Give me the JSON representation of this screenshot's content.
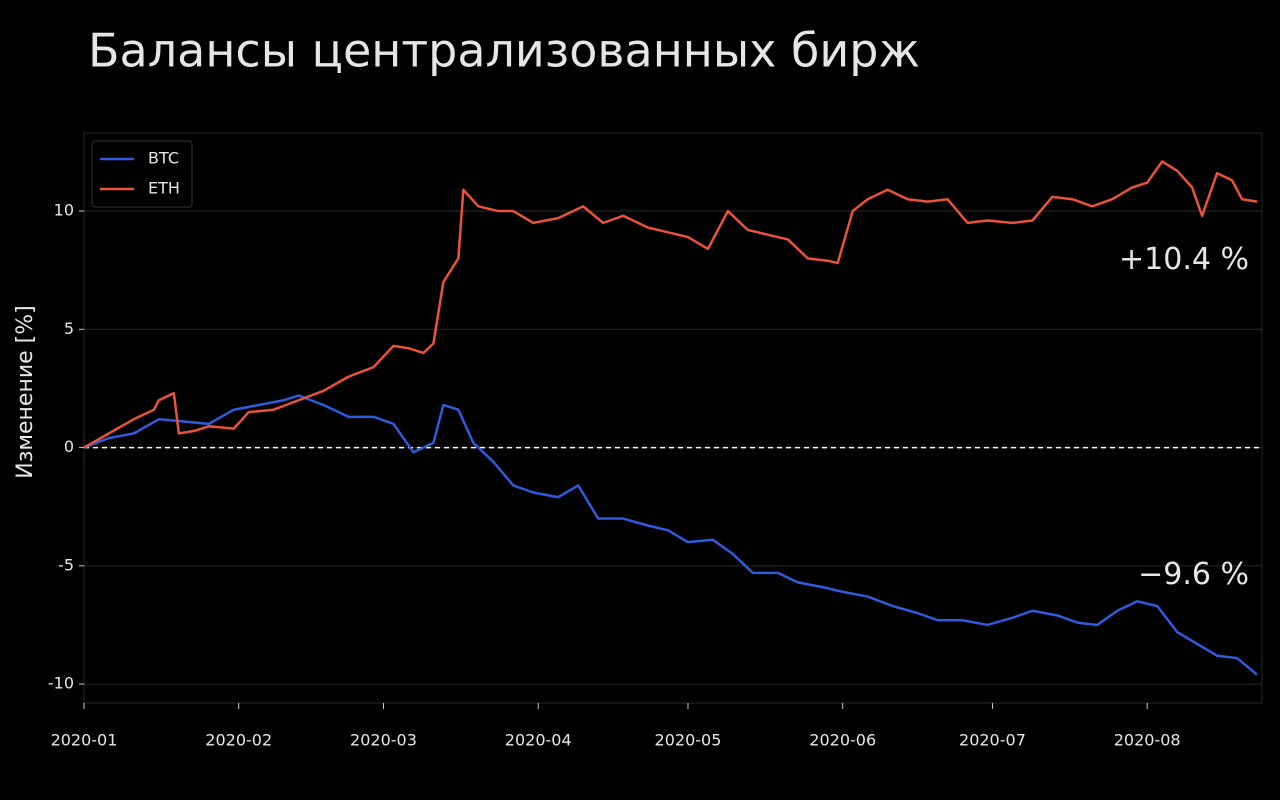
{
  "chart_data": {
    "type": "line",
    "title": "Балансы централизованных бирж",
    "y_label": "Изменение [%]",
    "xlim": [
      0,
      236
    ],
    "xticks": [
      {
        "value": 0,
        "label": "2020-01"
      },
      {
        "value": 31,
        "label": "2020-02"
      },
      {
        "value": 60,
        "label": "2020-03"
      },
      {
        "value": 91,
        "label": "2020-04"
      },
      {
        "value": 121,
        "label": "2020-05"
      },
      {
        "value": 152,
        "label": "2020-06"
      },
      {
        "value": 182,
        "label": "2020-07"
      },
      {
        "value": 213,
        "label": "2020-08"
      }
    ],
    "ylim": [
      -10.8,
      13.3
    ],
    "yticks": [
      -10,
      -5,
      0,
      5,
      10
    ],
    "grid": true,
    "reference_line": 0,
    "legend": "upper left",
    "series": [
      {
        "name": "BTC",
        "color": "#2f5bdc",
        "x": [
          0,
          5,
          10,
          15,
          20,
          25,
          30,
          35,
          40,
          43,
          48,
          53,
          58,
          62,
          66,
          70,
          72,
          75,
          78,
          82,
          86,
          90,
          95,
          99,
          103,
          108,
          113,
          117,
          121,
          126,
          130,
          134,
          139,
          143,
          148,
          152,
          157,
          162,
          167,
          171,
          176,
          181,
          186,
          190,
          195,
          199,
          203,
          207,
          211,
          215,
          219,
          223,
          227,
          231,
          235
        ],
        "values": [
          0,
          0.4,
          0.6,
          1.2,
          1.1,
          1.0,
          1.6,
          1.8,
          2.0,
          2.2,
          1.8,
          1.3,
          1.3,
          1.0,
          -0.2,
          0.2,
          1.8,
          1.6,
          0.2,
          -0.6,
          -1.6,
          -1.9,
          -2.1,
          -1.6,
          -3.0,
          -3.0,
          -3.3,
          -3.5,
          -4.0,
          -3.9,
          -4.5,
          -5.3,
          -5.3,
          -5.7,
          -5.9,
          -6.1,
          -6.3,
          -6.7,
          -7.0,
          -7.3,
          -7.3,
          -7.5,
          -7.2,
          -6.9,
          -7.1,
          -7.4,
          -7.5,
          -6.9,
          -6.5,
          -6.7,
          -7.8,
          -8.3,
          -8.8,
          -8.9,
          -9.6
        ]
      },
      {
        "name": "ETH",
        "color": "#e8533a",
        "x": [
          0,
          5,
          10,
          14,
          15,
          18,
          19,
          22,
          25,
          30,
          33,
          38,
          43,
          48,
          53,
          58,
          62,
          65,
          68,
          70,
          72,
          75,
          76,
          79,
          83,
          86,
          90,
          95,
          100,
          104,
          108,
          113,
          117,
          121,
          125,
          129,
          133,
          137,
          141,
          145,
          149,
          151,
          154,
          157,
          161,
          165,
          169,
          173,
          177,
          181,
          186,
          190,
          194,
          198,
          202,
          206,
          210,
          213,
          216,
          219,
          222,
          224,
          227,
          230,
          232,
          235
        ],
        "values": [
          0,
          0.6,
          1.2,
          1.6,
          2.0,
          2.3,
          0.6,
          0.7,
          0.9,
          0.8,
          1.5,
          1.6,
          2.0,
          2.4,
          3.0,
          3.4,
          4.3,
          4.2,
          4.0,
          4.4,
          7.0,
          8.0,
          10.9,
          10.2,
          10.0,
          10.0,
          9.5,
          9.7,
          10.2,
          9.5,
          9.8,
          9.3,
          9.1,
          8.9,
          8.4,
          10.0,
          9.2,
          9.0,
          8.8,
          8.0,
          7.9,
          7.8,
          10.0,
          10.5,
          10.9,
          10.5,
          10.4,
          10.5,
          9.5,
          9.6,
          9.5,
          9.6,
          10.6,
          10.5,
          10.2,
          10.5,
          11.0,
          11.2,
          12.1,
          11.7,
          11.0,
          9.8,
          11.6,
          11.3,
          10.5,
          10.4
        ]
      }
    ],
    "annotations": [
      {
        "text": "+10.4 %",
        "x": 235,
        "y": 7.9
      },
      {
        "text": "−9.6 %",
        "x": 235,
        "y": -5.4
      }
    ]
  }
}
